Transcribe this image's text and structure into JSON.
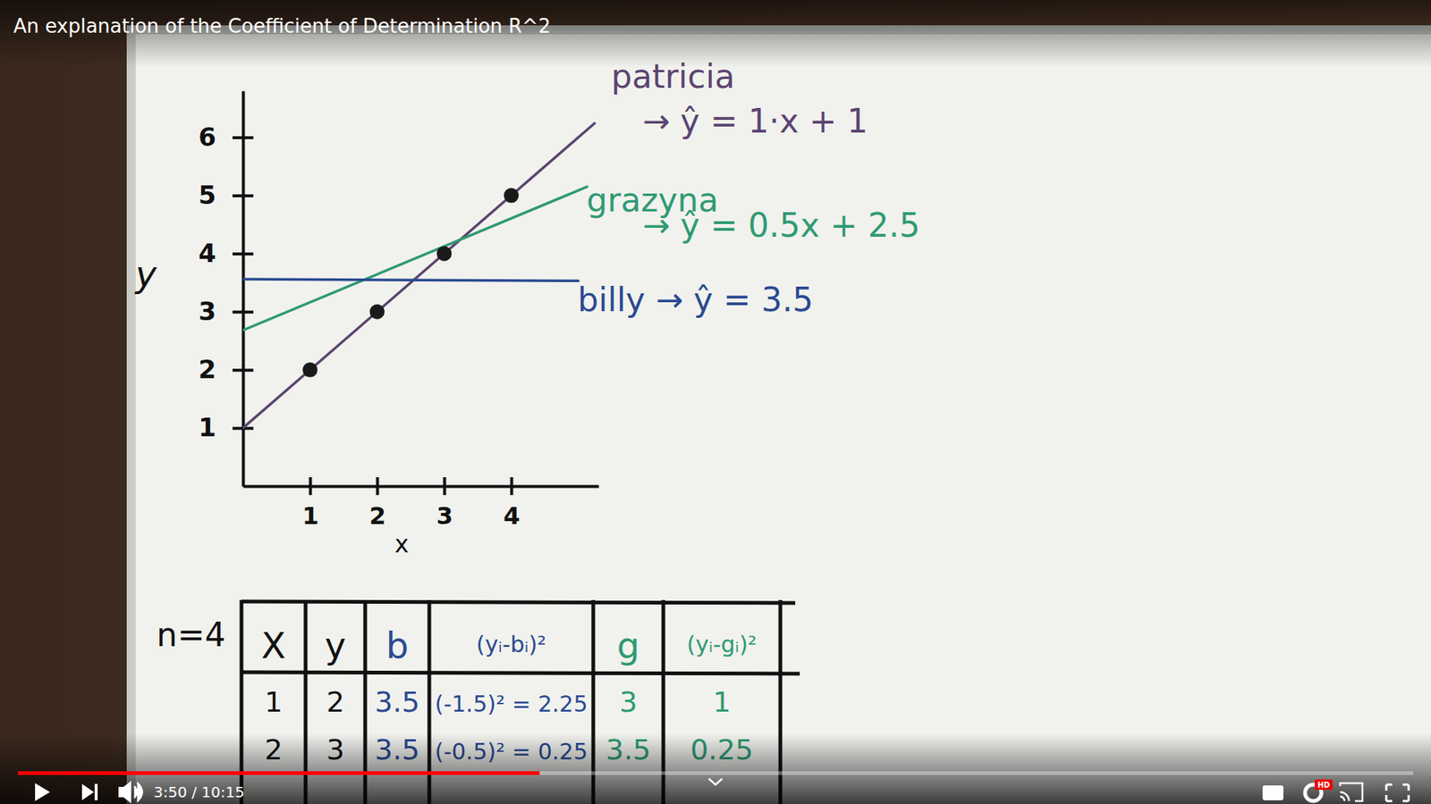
{
  "chart_data": {
    "type": "line",
    "x_label": "x",
    "y_label": "y",
    "xlim": [
      0,
      5.3
    ],
    "ylim": [
      0,
      6.8
    ],
    "xticks": [
      1,
      2,
      3,
      4
    ],
    "yticks": [
      1,
      2,
      3,
      4,
      5,
      6
    ],
    "series": [
      {
        "name": "patricia",
        "color": "#5b4470",
        "type": "line",
        "x": [
          0,
          5.24
        ],
        "values": [
          1,
          6.24
        ]
      },
      {
        "name": "grazyna",
        "color": "#2f9a72",
        "type": "line",
        "x": [
          0,
          5.13
        ],
        "values": [
          2.68,
          5.15
        ]
      },
      {
        "name": "billy",
        "color": "#2a4a90",
        "type": "line",
        "x": [
          0,
          5.0
        ],
        "values": [
          3.56,
          3.53
        ]
      },
      {
        "type": "scatter",
        "marker": "circle",
        "color": "#1a1a1a",
        "x": [
          1,
          2,
          3,
          4
        ],
        "values": [
          2,
          3,
          4,
          5
        ]
      }
    ],
    "annotations": [
      "→ ŷ = 1·x + 1",
      "→ ŷ = 0.5x + 2.5",
      "→ ŷ = 3.5"
    ]
  },
  "table": {
    "label": "n=4",
    "header": [
      "X",
      "y",
      "b",
      "(yᵢ-bᵢ)²",
      "g",
      "(yᵢ-gᵢ)²"
    ],
    "rows": [
      [
        "1",
        "2",
        "3.5",
        "(-1.5)² = 2.25",
        "3",
        "1"
      ],
      [
        "2",
        "3",
        "3.5",
        "(-0.5)² = 0.25",
        "3.5",
        "0.25"
      ]
    ]
  },
  "video": {
    "title": "An explanation of the Coefficient of Determination R^2",
    "time": "3:50 / 10:15",
    "progress": 0.374,
    "badge": "HD"
  }
}
